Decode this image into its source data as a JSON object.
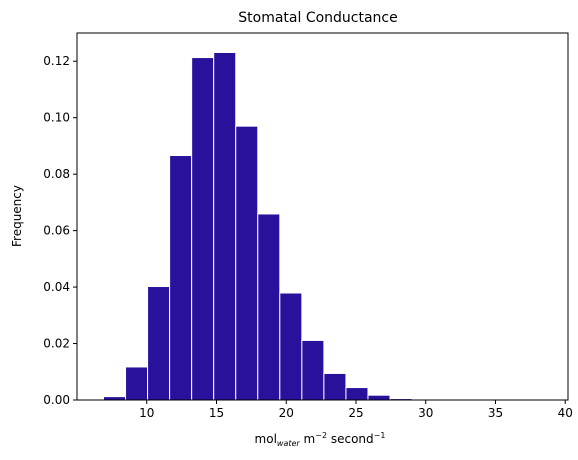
{
  "chart_data": {
    "type": "bar",
    "title": "Stomatal Conductance",
    "ylabel": "Frequency",
    "xlabel": {
      "base": "mol",
      "subscript": "water",
      "middle": " m",
      "exp1": "−2",
      "unit2": " second",
      "exp2": "−1"
    },
    "xlim": [
      5.0,
      40.2
    ],
    "ylim": [
      0,
      0.13
    ],
    "xticks": [
      10,
      15,
      20,
      25,
      30,
      35,
      40
    ],
    "yticks": [
      0.0,
      0.02,
      0.04,
      0.06,
      0.08,
      0.1,
      0.12
    ],
    "ytick_labels": [
      "0.00",
      "0.02",
      "0.04",
      "0.06",
      "0.08",
      "0.10",
      "0.12"
    ],
    "bin_edges": [
      6.9,
      8.48,
      10.06,
      11.64,
      13.22,
      14.8,
      16.38,
      17.96,
      19.54,
      21.12,
      22.7,
      24.28,
      25.86,
      27.44,
      29.02,
      30.6,
      32.18,
      33.76,
      35.34,
      36.92,
      38.5
    ],
    "values": [
      0.0012,
      0.0117,
      0.0402,
      0.0866,
      0.1213,
      0.1231,
      0.097,
      0.0659,
      0.0379,
      0.0211,
      0.0094,
      0.0044,
      0.0017,
      0.0005,
      0.0003,
      0.0001,
      0.0,
      0.0,
      0.0,
      0.0001
    ],
    "bar_color": "#2a119c",
    "edge_color": "#ffffff",
    "grid": false
  }
}
